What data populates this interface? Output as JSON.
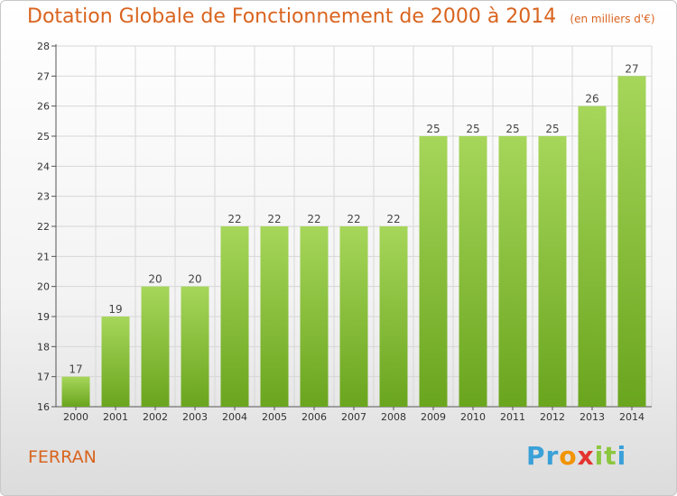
{
  "title": "Dotation Globale de Fonctionnement de 2000 à 2014",
  "subtitle": "(en milliers d'€)",
  "commune": "FERRAN",
  "logo": {
    "letters": [
      "P",
      "r",
      "o",
      "x",
      "i",
      "t",
      "i"
    ],
    "colors": [
      "#3aa0d8",
      "#3aa0d8",
      "#f29400",
      "#e3342f",
      "#8cc63f",
      "#8cc63f",
      "#3aa0d8"
    ]
  },
  "colors": {
    "title": "#d9641f",
    "bar_light": "#a6d65a",
    "bar_dark": "#6aa51e",
    "grid": "#d7d7d7"
  },
  "chart_data": {
    "type": "bar",
    "title": "Dotation Globale de Fonctionnement de 2000 à 2014",
    "subtitle": "(en milliers d'€)",
    "categories": [
      "2000",
      "2001",
      "2002",
      "2003",
      "2004",
      "2005",
      "2006",
      "2007",
      "2008",
      "2009",
      "2010",
      "2011",
      "2012",
      "2013",
      "2014"
    ],
    "values": [
      17,
      19,
      20,
      20,
      22,
      22,
      22,
      22,
      22,
      25,
      25,
      25,
      25,
      26,
      27
    ],
    "ylim": [
      16,
      28
    ],
    "yticks": [
      16,
      17,
      18,
      19,
      20,
      21,
      22,
      23,
      24,
      25,
      26,
      27,
      28
    ],
    "grid": true,
    "xlabel": "",
    "ylabel": ""
  }
}
